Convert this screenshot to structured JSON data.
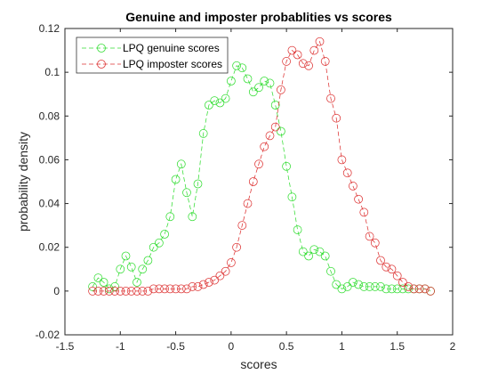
{
  "chart_data": {
    "type": "line",
    "title": "Genuine and imposter probablities vs scores",
    "xlabel": "scores",
    "ylabel": "probability density",
    "xlim": [
      -1.5,
      2
    ],
    "ylim": [
      -0.02,
      0.12
    ],
    "xticks": [
      -1.5,
      -1,
      -0.5,
      0,
      0.5,
      1,
      1.5,
      2
    ],
    "xtick_labels": [
      "-1.5",
      "-1",
      "-0.5",
      "0",
      "0.5",
      "1",
      "1.5",
      "2"
    ],
    "yticks": [
      -0.02,
      0,
      0.02,
      0.04,
      0.06,
      0.08,
      0.1,
      0.12
    ],
    "ytick_labels": [
      "-0.02",
      "0",
      "0.02",
      "0.04",
      "0.06",
      "0.08",
      "0.1",
      "0.12"
    ],
    "grid": false,
    "legend_position": "top-left",
    "series": [
      {
        "name": "LPQ genuine scores",
        "color": "#33dd33",
        "line_style": "dashed",
        "marker": "circle",
        "x": [
          -1.25,
          -1.2,
          -1.15,
          -1.1,
          -1.05,
          -1.0,
          -0.95,
          -0.9,
          -0.85,
          -0.8,
          -0.75,
          -0.7,
          -0.65,
          -0.6,
          -0.55,
          -0.5,
          -0.45,
          -0.4,
          -0.35,
          -0.3,
          -0.25,
          -0.2,
          -0.15,
          -0.1,
          -0.05,
          0.0,
          0.05,
          0.1,
          0.15,
          0.2,
          0.25,
          0.3,
          0.35,
          0.4,
          0.45,
          0.5,
          0.55,
          0.6,
          0.65,
          0.7,
          0.75,
          0.8,
          0.85,
          0.9,
          0.95,
          1.0,
          1.05,
          1.1,
          1.15,
          1.2,
          1.25,
          1.3,
          1.35,
          1.4,
          1.45,
          1.5,
          1.55,
          1.6,
          1.65,
          1.7,
          1.75,
          1.8
        ],
        "y": [
          0.002,
          0.006,
          0.004,
          0.001,
          0.002,
          0.01,
          0.016,
          0.011,
          0.004,
          0.01,
          0.014,
          0.02,
          0.022,
          0.026,
          0.034,
          0.051,
          0.058,
          0.045,
          0.034,
          0.049,
          0.072,
          0.085,
          0.087,
          0.086,
          0.088,
          0.096,
          0.103,
          0.102,
          0.097,
          0.091,
          0.093,
          0.096,
          0.095,
          0.085,
          0.073,
          0.057,
          0.043,
          0.028,
          0.018,
          0.016,
          0.019,
          0.018,
          0.016,
          0.009,
          0.003,
          0.001,
          0.002,
          0.004,
          0.003,
          0.002,
          0.002,
          0.002,
          0.002,
          0.001,
          0.001,
          0.001,
          0.001,
          0.001,
          0.001,
          0.001,
          0.001,
          0.0
        ]
      },
      {
        "name": "LPQ imposter scores",
        "color": "#dd3333",
        "line_style": "dashed",
        "marker": "circle",
        "x": [
          -1.25,
          -1.2,
          -1.15,
          -1.1,
          -1.05,
          -1.0,
          -0.95,
          -0.9,
          -0.85,
          -0.8,
          -0.75,
          -0.7,
          -0.65,
          -0.6,
          -0.55,
          -0.5,
          -0.45,
          -0.4,
          -0.35,
          -0.3,
          -0.25,
          -0.2,
          -0.15,
          -0.1,
          -0.05,
          0.0,
          0.05,
          0.1,
          0.15,
          0.2,
          0.25,
          0.3,
          0.35,
          0.4,
          0.45,
          0.5,
          0.55,
          0.6,
          0.65,
          0.7,
          0.75,
          0.8,
          0.85,
          0.9,
          0.95,
          1.0,
          1.05,
          1.1,
          1.15,
          1.2,
          1.25,
          1.3,
          1.35,
          1.4,
          1.45,
          1.5,
          1.55,
          1.6,
          1.65,
          1.7,
          1.75,
          1.8
        ],
        "y": [
          0.0,
          0.0,
          0.0,
          0.0,
          0.0,
          0.0,
          0.0,
          0.0,
          0.0,
          0.0,
          0.0,
          0.001,
          0.001,
          0.001,
          0.001,
          0.001,
          0.001,
          0.001,
          0.002,
          0.002,
          0.003,
          0.004,
          0.005,
          0.007,
          0.009,
          0.013,
          0.02,
          0.03,
          0.04,
          0.05,
          0.058,
          0.066,
          0.071,
          0.075,
          0.092,
          0.105,
          0.11,
          0.108,
          0.104,
          0.103,
          0.11,
          0.114,
          0.105,
          0.088,
          0.079,
          0.06,
          0.054,
          0.048,
          0.042,
          0.036,
          0.025,
          0.022,
          0.014,
          0.011,
          0.01,
          0.007,
          0.004,
          0.002,
          0.001,
          0.001,
          0.001,
          0.0
        ]
      }
    ]
  }
}
